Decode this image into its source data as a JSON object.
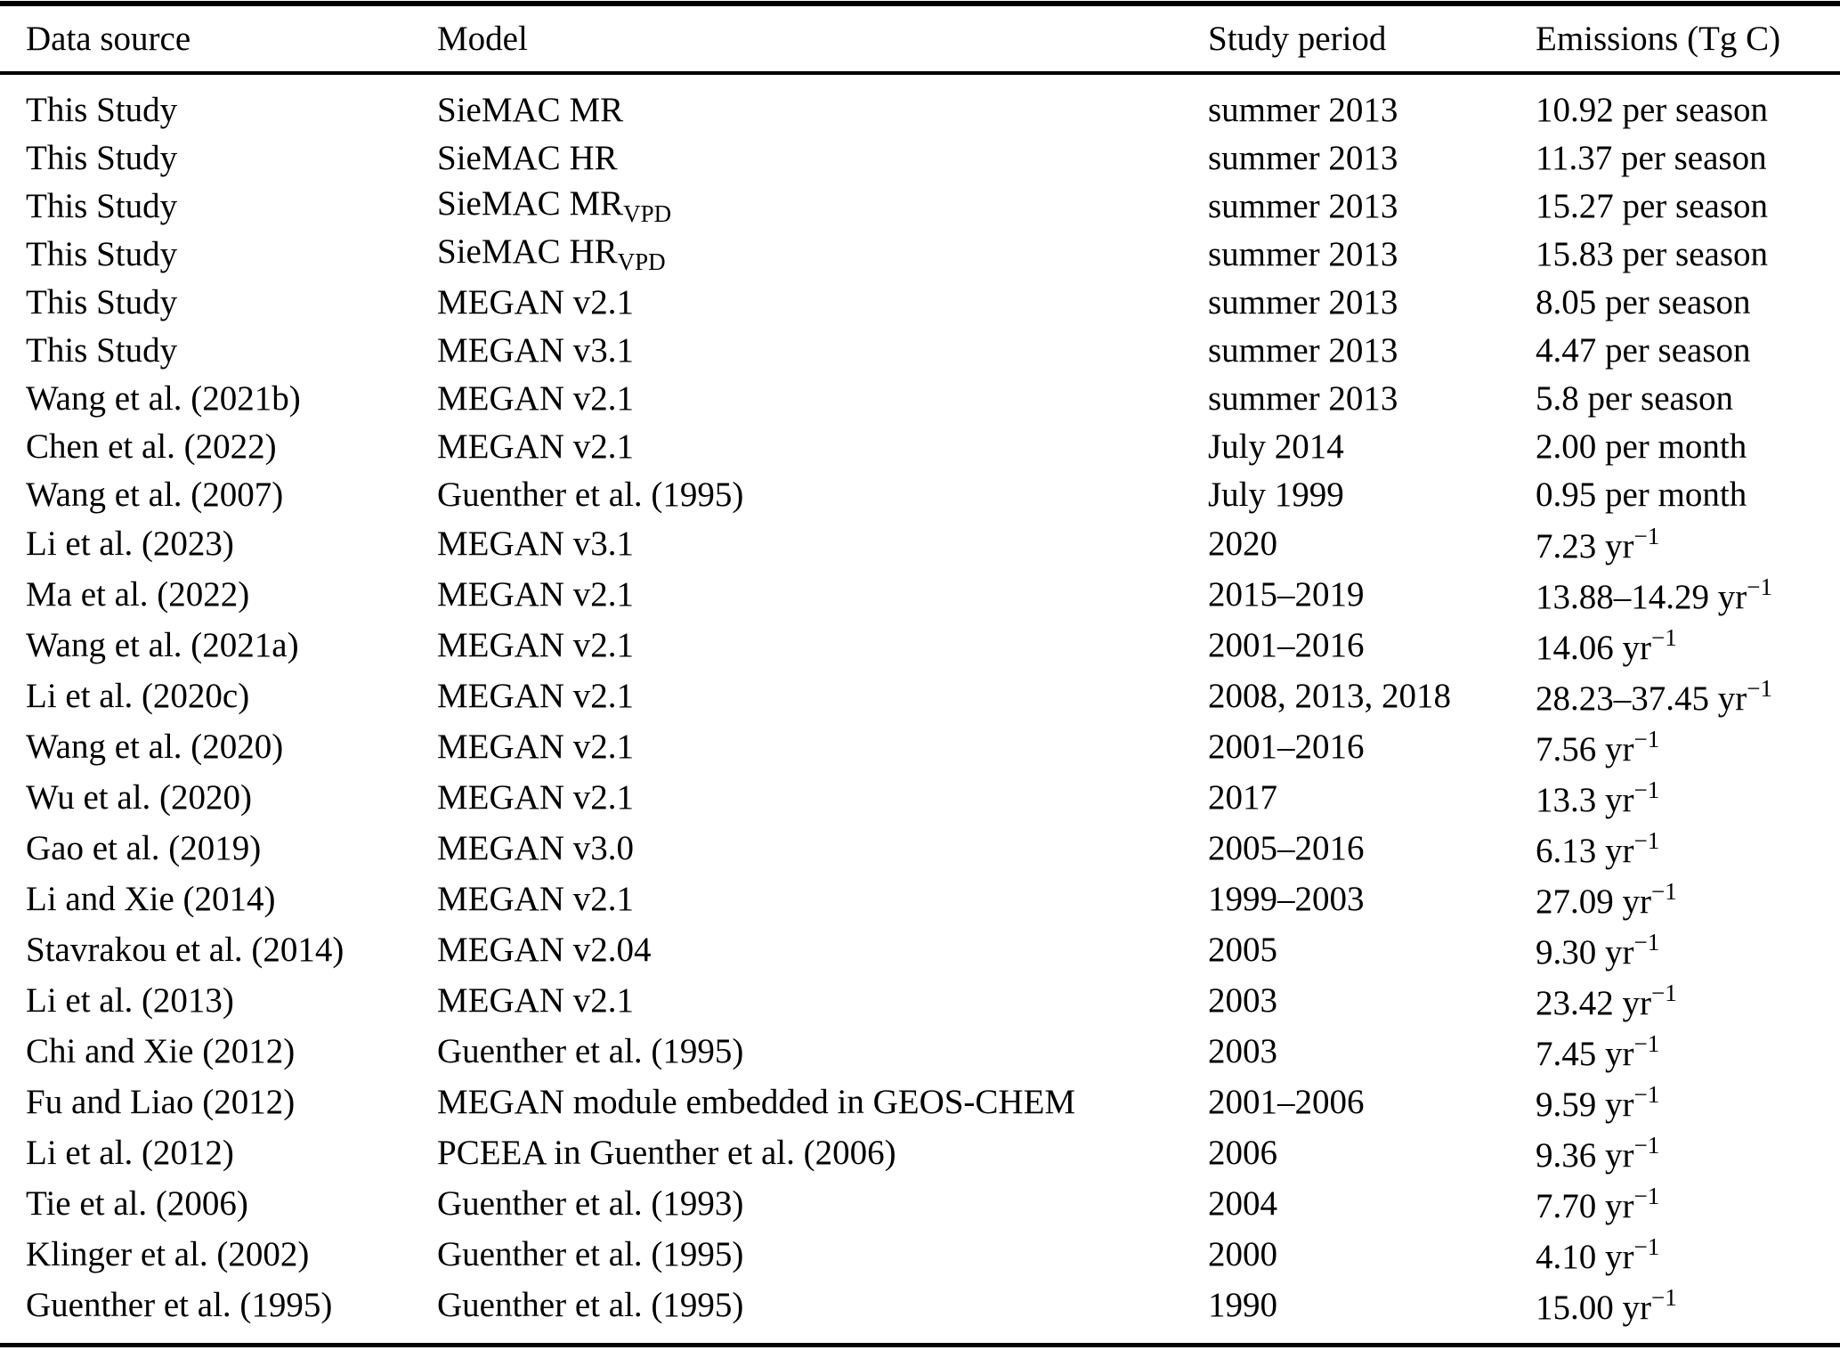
{
  "colors": {
    "background": "#ffffff",
    "text": "#000000",
    "rule": "#000000"
  },
  "table": {
    "columns": [
      "Data source",
      "Model",
      "Study period",
      "Emissions (Tg C)"
    ],
    "rows": [
      {
        "source": "This Study",
        "model": "SieMAC MR",
        "model_sub": "",
        "period": "summer 2013",
        "emissions": "10.92 per season",
        "emissions_sup": ""
      },
      {
        "source": "This Study",
        "model": "SieMAC HR",
        "model_sub": "",
        "period": "summer 2013",
        "emissions": "11.37 per season",
        "emissions_sup": ""
      },
      {
        "source": "This Study",
        "model": "SieMAC MR",
        "model_sub": "VPD",
        "period": "summer 2013",
        "emissions": "15.27 per season",
        "emissions_sup": ""
      },
      {
        "source": "This Study",
        "model": "SieMAC HR",
        "model_sub": "VPD",
        "period": "summer 2013",
        "emissions": "15.83 per season",
        "emissions_sup": ""
      },
      {
        "source": "This Study",
        "model": "MEGAN v2.1",
        "model_sub": "",
        "period": "summer 2013",
        "emissions": "8.05 per season",
        "emissions_sup": ""
      },
      {
        "source": "This Study",
        "model": "MEGAN v3.1",
        "model_sub": "",
        "period": "summer 2013",
        "emissions": "4.47 per season",
        "emissions_sup": ""
      },
      {
        "source": "Wang et al. (2021b)",
        "model": "MEGAN v2.1",
        "model_sub": "",
        "period": "summer 2013",
        "emissions": "5.8 per season",
        "emissions_sup": ""
      },
      {
        "source": "Chen et al. (2022)",
        "model": "MEGAN v2.1",
        "model_sub": "",
        "period": "July 2014",
        "emissions": "2.00 per month",
        "emissions_sup": ""
      },
      {
        "source": "Wang et al. (2007)",
        "model": "Guenther et al. (1995)",
        "model_sub": "",
        "period": "July 1999",
        "emissions": "0.95 per month",
        "emissions_sup": ""
      },
      {
        "source": "Li et al. (2023)",
        "model": "MEGAN v3.1",
        "model_sub": "",
        "period": "2020",
        "emissions": "7.23 yr",
        "emissions_sup": "−1"
      },
      {
        "source": "Ma et al. (2022)",
        "model": "MEGAN v2.1",
        "model_sub": "",
        "period": "2015–2019",
        "emissions": "13.88–14.29 yr",
        "emissions_sup": "−1"
      },
      {
        "source": "Wang et al. (2021a)",
        "model": "MEGAN v2.1",
        "model_sub": "",
        "period": "2001–2016",
        "emissions": "14.06 yr",
        "emissions_sup": "−1"
      },
      {
        "source": "Li et al. (2020c)",
        "model": "MEGAN v2.1",
        "model_sub": "",
        "period": "2008, 2013, 2018",
        "emissions": "28.23–37.45 yr",
        "emissions_sup": "−1"
      },
      {
        "source": "Wang et al. (2020)",
        "model": "MEGAN v2.1",
        "model_sub": "",
        "period": "2001–2016",
        "emissions": "7.56 yr",
        "emissions_sup": "−1"
      },
      {
        "source": "Wu et al. (2020)",
        "model": "MEGAN v2.1",
        "model_sub": "",
        "period": "2017",
        "emissions": "13.3 yr",
        "emissions_sup": "−1"
      },
      {
        "source": "Gao et al. (2019)",
        "model": "MEGAN v3.0",
        "model_sub": "",
        "period": "2005–2016",
        "emissions": "6.13 yr",
        "emissions_sup": "−1"
      },
      {
        "source": "Li and Xie (2014)",
        "model": "MEGAN v2.1",
        "model_sub": "",
        "period": "1999–2003",
        "emissions": "27.09 yr",
        "emissions_sup": "−1"
      },
      {
        "source": "Stavrakou et al. (2014)",
        "model": "MEGAN v2.04",
        "model_sub": "",
        "period": "2005",
        "emissions": "9.30 yr",
        "emissions_sup": "−1"
      },
      {
        "source": "Li et al. (2013)",
        "model": "MEGAN v2.1",
        "model_sub": "",
        "period": "2003",
        "emissions": "23.42 yr",
        "emissions_sup": "−1"
      },
      {
        "source": "Chi and Xie (2012)",
        "model": "Guenther et al. (1995)",
        "model_sub": "",
        "period": "2003",
        "emissions": "7.45 yr",
        "emissions_sup": "−1"
      },
      {
        "source": "Fu and Liao (2012)",
        "model": "MEGAN module embedded in GEOS-CHEM",
        "model_sub": "",
        "period": "2001–2006",
        "emissions": "9.59 yr",
        "emissions_sup": "−1"
      },
      {
        "source": "Li et al. (2012)",
        "model": "PCEEA in Guenther et al. (2006)",
        "model_sub": "",
        "period": "2006",
        "emissions": "9.36 yr",
        "emissions_sup": "−1"
      },
      {
        "source": "Tie et al. (2006)",
        "model": "Guenther et al. (1993)",
        "model_sub": "",
        "period": "2004",
        "emissions": "7.70 yr",
        "emissions_sup": "−1"
      },
      {
        "source": "Klinger et al. (2002)",
        "model": "Guenther et al. (1995)",
        "model_sub": "",
        "period": "2000",
        "emissions": "4.10 yr",
        "emissions_sup": "−1"
      },
      {
        "source": "Guenther et al. (1995)",
        "model": "Guenther et al. (1995)",
        "model_sub": "",
        "period": "1990",
        "emissions": "15.00 yr",
        "emissions_sup": "−1"
      }
    ]
  }
}
